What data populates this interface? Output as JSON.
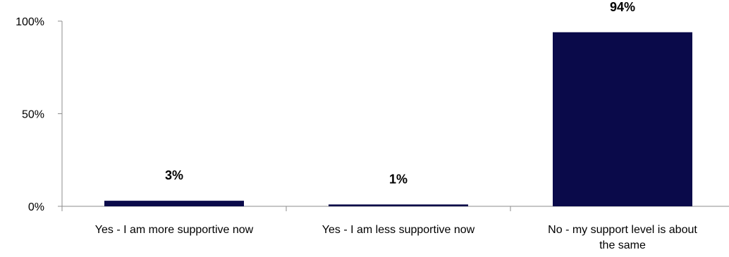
{
  "chart_data": {
    "type": "bar",
    "categories": [
      [
        "Yes - I am more supportive now"
      ],
      [
        "Yes - I am less supportive now"
      ],
      [
        "No - my support level is about",
        "the same"
      ]
    ],
    "values": [
      3,
      1,
      94
    ],
    "data_labels": [
      "3%",
      "1%",
      "94%"
    ],
    "ylim": [
      0,
      100
    ],
    "y_ticks": [
      0,
      50,
      100
    ],
    "y_tick_labels": [
      "0%",
      "50%",
      "100%"
    ],
    "grid": false,
    "legend": "none",
    "bar_color": "#0a0a4a"
  }
}
